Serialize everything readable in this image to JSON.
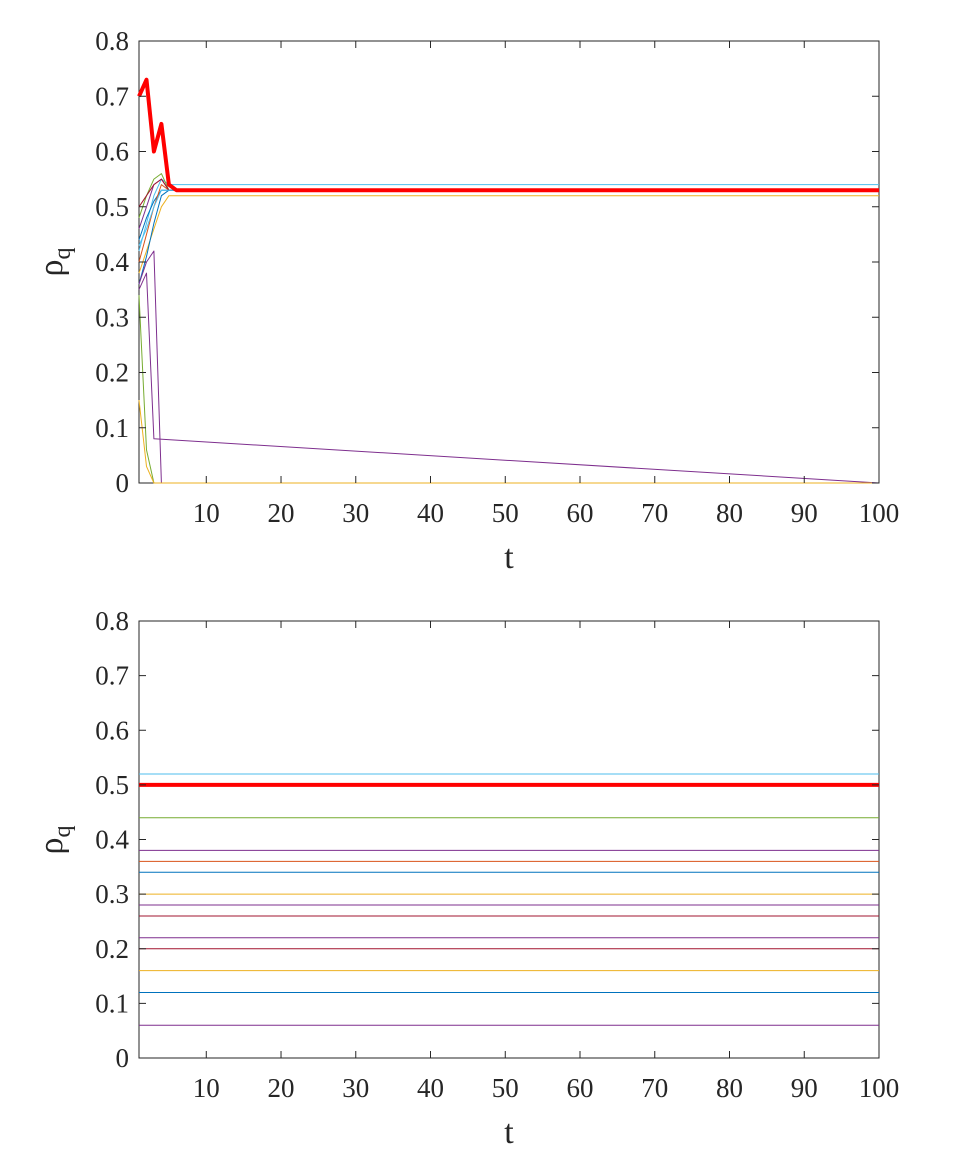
{
  "chart_data": [
    {
      "type": "line",
      "xlabel": "t",
      "ylabel": "ρ",
      "ylabel_subscript": "q",
      "xlim": [
        1,
        100
      ],
      "ylim": [
        0,
        0.8
      ],
      "xticks": [
        10,
        20,
        30,
        40,
        50,
        60,
        70,
        80,
        90,
        100
      ],
      "yticks": [
        0,
        0.1,
        0.2,
        0.3,
        0.4,
        0.5,
        0.6,
        0.7,
        0.8
      ],
      "xtick_labels": [
        "10",
        "20",
        "30",
        "40",
        "50",
        "60",
        "70",
        "80",
        "90",
        "100"
      ],
      "ytick_labels": [
        "0",
        "0.1",
        "0.2",
        "0.3",
        "0.4",
        "0.5",
        "0.6",
        "0.7",
        "0.8"
      ],
      "grid": false,
      "series": [
        {
          "color": "#ff0000",
          "emphasis": true,
          "x": [
            1,
            2,
            3,
            4,
            5,
            6,
            100
          ],
          "y": [
            0.7,
            0.73,
            0.6,
            0.65,
            0.54,
            0.53,
            0.53
          ]
        },
        {
          "color": "#4dbeee",
          "x": [
            1,
            2,
            3,
            4,
            5,
            6,
            100
          ],
          "y": [
            0.42,
            0.47,
            0.52,
            0.55,
            0.54,
            0.54,
            0.54
          ]
        },
        {
          "color": "#edb120",
          "x": [
            1,
            2,
            3,
            4,
            5,
            6,
            100
          ],
          "y": [
            0.38,
            0.42,
            0.46,
            0.5,
            0.52,
            0.52,
            0.52
          ]
        },
        {
          "color": "#0072bd",
          "x": [
            1,
            2,
            3,
            4,
            5,
            100
          ],
          "y": [
            0.44,
            0.48,
            0.51,
            0.53,
            0.53,
            0.53
          ]
        },
        {
          "color": "#77ac30",
          "x": [
            1,
            2,
            3,
            4,
            5,
            100
          ],
          "y": [
            0.48,
            0.52,
            0.55,
            0.56,
            0.53,
            0.53
          ]
        },
        {
          "color": "#7e2f8e",
          "x": [
            1,
            2,
            3,
            4,
            5,
            100
          ],
          "y": [
            0.46,
            0.5,
            0.54,
            0.55,
            0.53,
            0.53
          ]
        },
        {
          "color": "#d95319",
          "x": [
            1,
            2,
            3,
            4,
            5,
            100
          ],
          "y": [
            0.4,
            0.45,
            0.5,
            0.54,
            0.53,
            0.53
          ]
        },
        {
          "color": "#a2142f",
          "x": [
            1,
            2,
            3,
            4,
            5,
            100
          ],
          "y": [
            0.5,
            0.52,
            0.54,
            0.55,
            0.53,
            0.53
          ]
        },
        {
          "color": "#0072bd",
          "x": [
            1,
            2,
            3,
            4,
            5,
            100
          ],
          "y": [
            0.36,
            0.41,
            0.47,
            0.52,
            0.53,
            0.53
          ]
        },
        {
          "color": "#4dbeee",
          "x": [
            1,
            2,
            3,
            4,
            5,
            100
          ],
          "y": [
            0.43,
            0.46,
            0.5,
            0.53,
            0.53,
            0.53
          ]
        },
        {
          "color": "#7e2f8e",
          "x": [
            1,
            2,
            3,
            4,
            100
          ],
          "y": [
            0.36,
            0.4,
            0.42,
            0,
            0
          ]
        },
        {
          "color": "#7e2f8e",
          "x": [
            1,
            2,
            3,
            100
          ],
          "y": [
            0.35,
            0.38,
            0.08,
            0
          ]
        },
        {
          "color": "#77ac30",
          "x": [
            1,
            2,
            3,
            100
          ],
          "y": [
            0.34,
            0.06,
            0,
            0
          ]
        },
        {
          "color": "#edb120",
          "x": [
            1,
            2,
            3,
            100
          ],
          "y": [
            0.15,
            0.03,
            0,
            0
          ]
        }
      ]
    },
    {
      "type": "line",
      "xlabel": "t",
      "ylabel": "ρ",
      "ylabel_subscript": "q",
      "xlim": [
        1,
        100
      ],
      "ylim": [
        0,
        0.8
      ],
      "xticks": [
        10,
        20,
        30,
        40,
        50,
        60,
        70,
        80,
        90,
        100
      ],
      "yticks": [
        0,
        0.1,
        0.2,
        0.3,
        0.4,
        0.5,
        0.6,
        0.7,
        0.8
      ],
      "xtick_labels": [
        "10",
        "20",
        "30",
        "40",
        "50",
        "60",
        "70",
        "80",
        "90",
        "100"
      ],
      "ytick_labels": [
        "0",
        "0.1",
        "0.2",
        "0.3",
        "0.4",
        "0.5",
        "0.6",
        "0.7",
        "0.8"
      ],
      "grid": false,
      "series": [
        {
          "color": "#ff0000",
          "emphasis": true,
          "x": [
            1,
            100
          ],
          "y": [
            0.5,
            0.5
          ]
        },
        {
          "color": "#4dbeee",
          "x": [
            1,
            100
          ],
          "y": [
            0.52,
            0.52
          ]
        },
        {
          "color": "#77ac30",
          "x": [
            1,
            100
          ],
          "y": [
            0.44,
            0.44
          ]
        },
        {
          "color": "#7e2f8e",
          "x": [
            1,
            100
          ],
          "y": [
            0.38,
            0.38
          ]
        },
        {
          "color": "#d95319",
          "x": [
            1,
            100
          ],
          "y": [
            0.36,
            0.36
          ]
        },
        {
          "color": "#0072bd",
          "x": [
            1,
            100
          ],
          "y": [
            0.34,
            0.34
          ]
        },
        {
          "color": "#edb120",
          "x": [
            1,
            100
          ],
          "y": [
            0.3,
            0.3
          ]
        },
        {
          "color": "#7e2f8e",
          "x": [
            1,
            100
          ],
          "y": [
            0.28,
            0.28
          ]
        },
        {
          "color": "#a2142f",
          "x": [
            1,
            100
          ],
          "y": [
            0.26,
            0.26
          ]
        },
        {
          "color": "#7e2f8e",
          "x": [
            1,
            100
          ],
          "y": [
            0.22,
            0.22
          ]
        },
        {
          "color": "#a2142f",
          "x": [
            1,
            100
          ],
          "y": [
            0.2,
            0.2
          ]
        },
        {
          "color": "#edb120",
          "x": [
            1,
            100
          ],
          "y": [
            0.16,
            0.16
          ]
        },
        {
          "color": "#0072bd",
          "x": [
            1,
            100
          ],
          "y": [
            0.12,
            0.12
          ]
        },
        {
          "color": "#7e2f8e",
          "x": [
            1,
            100
          ],
          "y": [
            0.06,
            0.06
          ]
        }
      ]
    }
  ]
}
